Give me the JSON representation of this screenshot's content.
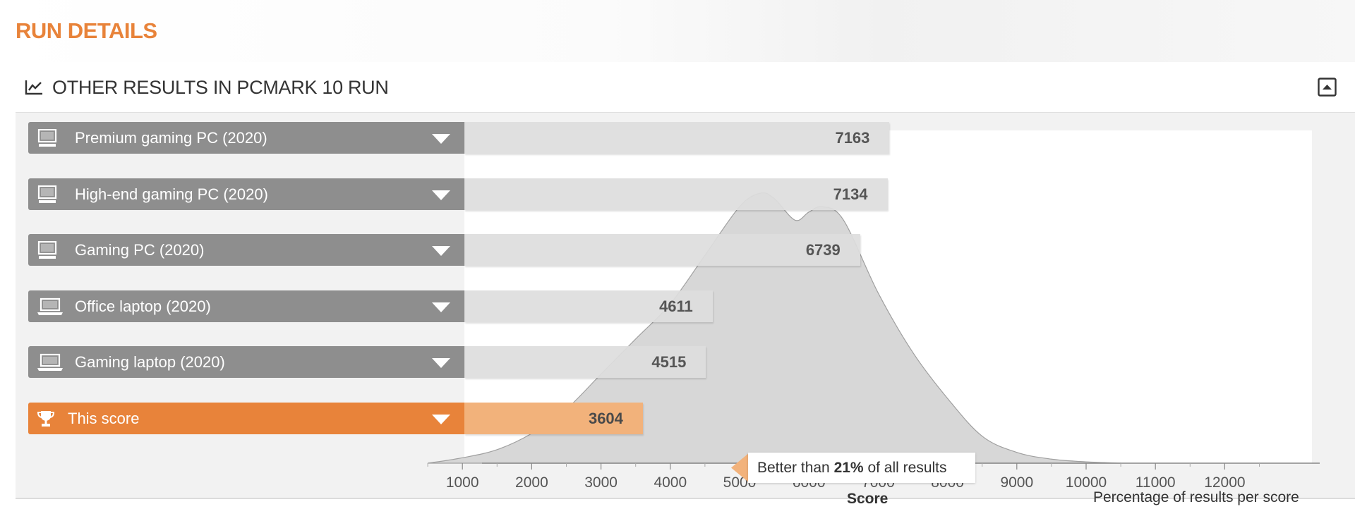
{
  "page": {
    "title": "RUN DETAILS"
  },
  "panel": {
    "title": "OTHER RESULTS IN PCMARK 10 RUN"
  },
  "colors": {
    "accent": "#e8833a",
    "label_bg": "#8e8e8e",
    "bar_bg": "#dddddd",
    "highlight_bar": "#f2b27b",
    "distribution": "#d4d4d4"
  },
  "icons": {
    "panel": "line-chart-icon",
    "collapse": "collapse-icon",
    "desktop": "desktop-icon",
    "laptop": "laptop-icon",
    "trophy": "trophy-icon",
    "chevron": "chevron-down-icon"
  },
  "callout": {
    "prefix": "Better than",
    "percent": "21%",
    "suffix": "of all results"
  },
  "axis": {
    "title": "Score",
    "distribution_label": "Percentage of results per score"
  },
  "chart_data": [
    {
      "type": "bar",
      "orientation": "horizontal",
      "categories": [
        "Premium gaming PC (2020)",
        "High-end gaming PC (2020)",
        "Gaming PC (2020)",
        "Office laptop (2020)",
        "Gaming laptop (2020)",
        "This score"
      ],
      "values": [
        7163,
        7134,
        6739,
        4611,
        4515,
        3604
      ],
      "icons": [
        "desktop-icon",
        "desktop-icon",
        "desktop-icon",
        "laptop-icon",
        "laptop-icon",
        "trophy-icon"
      ],
      "highlight_index": 5,
      "xlabel": "Score",
      "xlim": [
        500,
        12600
      ],
      "xticks": [
        1000,
        2000,
        3000,
        4000,
        5000,
        6000,
        7000,
        8000,
        9000,
        10000,
        11000,
        12000
      ]
    },
    {
      "type": "area",
      "label": "Percentage of results per score",
      "x": [
        500,
        1000,
        1500,
        2000,
        2500,
        3000,
        3500,
        4000,
        4500,
        5000,
        5300,
        5500,
        5800,
        6000,
        6200,
        6500,
        7000,
        7500,
        8000,
        8500,
        9000,
        9500,
        10000,
        10500
      ],
      "y": [
        0,
        2,
        5,
        11,
        20,
        33,
        46,
        59,
        77,
        95,
        100,
        98,
        90,
        93,
        95,
        90,
        63,
        41,
        24,
        10,
        4,
        1.5,
        0.5,
        0
      ]
    }
  ]
}
